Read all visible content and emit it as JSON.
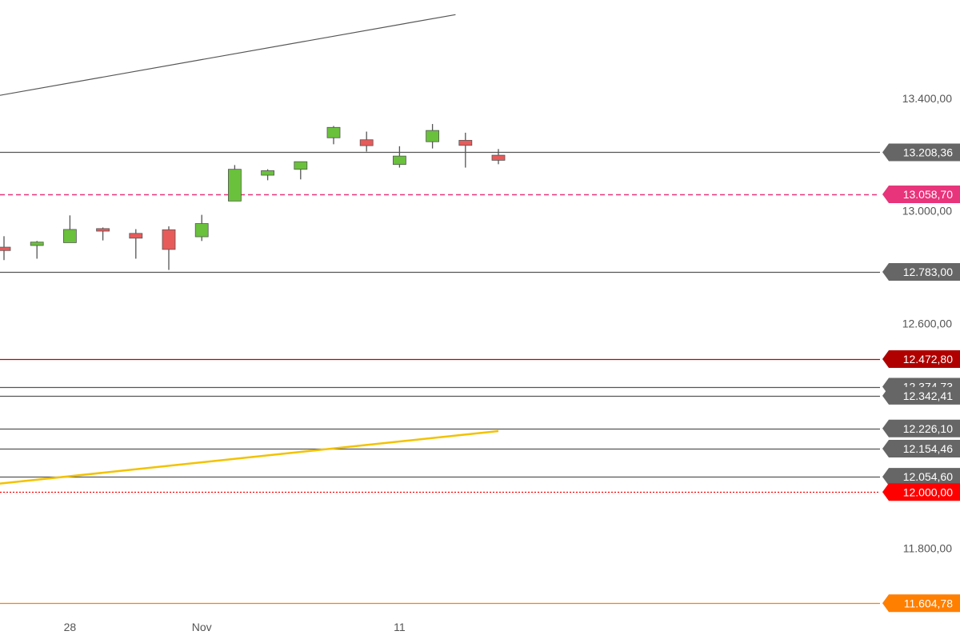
{
  "chart_data": {
    "type": "candlestick",
    "title": "",
    "xlabel": "",
    "ylabel": "",
    "ylim": [
      11560,
      13750
    ],
    "y_ticks": [
      {
        "value": 13400,
        "label": "13.400,00"
      },
      {
        "value": 13000,
        "label": "13.000,00"
      },
      {
        "value": 12600,
        "label": "12.600,00"
      },
      {
        "value": 11800,
        "label": "11.800,00"
      }
    ],
    "x_ticks": [
      {
        "index": 2,
        "label": "28"
      },
      {
        "index": 6,
        "label": "Nov"
      },
      {
        "index": 12,
        "label": "11"
      }
    ],
    "candles": [
      {
        "open": 12871,
        "high": 12910,
        "low": 12825,
        "close": 12859
      },
      {
        "open": 12877,
        "high": 12893,
        "low": 12830,
        "close": 12889
      },
      {
        "open": 12887,
        "high": 12984,
        "low": 12887,
        "close": 12934
      },
      {
        "open": 12937,
        "high": 12941,
        "low": 12895,
        "close": 12928
      },
      {
        "open": 12920,
        "high": 12935,
        "low": 12830,
        "close": 12903
      },
      {
        "open": 12933,
        "high": 12945,
        "low": 12790,
        "close": 12863
      },
      {
        "open": 12908,
        "high": 12986,
        "low": 12893,
        "close": 12955
      },
      {
        "open": 13035,
        "high": 13163,
        "low": 13035,
        "close": 13148
      },
      {
        "open": 13127,
        "high": 13148,
        "low": 13109,
        "close": 13143
      },
      {
        "open": 13148,
        "high": 13175,
        "low": 13112,
        "close": 13175
      },
      {
        "open": 13260,
        "high": 13302,
        "low": 13237,
        "close": 13297
      },
      {
        "open": 13253,
        "high": 13282,
        "low": 13211,
        "close": 13232
      },
      {
        "open": 13165,
        "high": 13230,
        "low": 13154,
        "close": 13195
      },
      {
        "open": 13246,
        "high": 13309,
        "low": 13222,
        "close": 13286
      },
      {
        "open": 13251,
        "high": 13278,
        "low": 13154,
        "close": 13233
      },
      {
        "open": 13198,
        "high": 13220,
        "low": 13166,
        "close": 13180
      }
    ],
    "horizontal_levels": [
      {
        "value": 13208.36,
        "label": "13.208,36",
        "line_color": "#555555",
        "tag_color": "#666666",
        "style": "solid"
      },
      {
        "value": 13058.7,
        "label": "13.058,70",
        "line_color": "#e8347a",
        "tag_color": "#e8347a",
        "style": "dashed"
      },
      {
        "value": 12783.0,
        "label": "12.783,00",
        "line_color": "#555555",
        "tag_color": "#666666",
        "style": "solid"
      },
      {
        "value": 12472.8,
        "label": "12.472,80",
        "line_color": "#c00000",
        "tag_color": "#b00000",
        "style": "solid"
      },
      {
        "value": 12374.73,
        "label": "12.374,73",
        "line_color": "#555555",
        "tag_color": "#666666",
        "style": "solid"
      },
      {
        "value": 12342.41,
        "label": "12.342,41",
        "line_color": "#555555",
        "tag_color": "#666666",
        "style": "solid"
      },
      {
        "value": 12226.1,
        "label": "12.226,10",
        "line_color": "#555555",
        "tag_color": "#666666",
        "style": "solid"
      },
      {
        "value": 12154.46,
        "label": "12.154,46",
        "line_color": "#555555",
        "tag_color": "#666666",
        "style": "solid"
      },
      {
        "value": 12054.6,
        "label": "12.054,60",
        "line_color": "#555555",
        "tag_color": "#666666",
        "style": "solid"
      },
      {
        "value": 12000.0,
        "label": "12.000,00",
        "line_color": "#ff0000",
        "tag_color": "#ff0000",
        "style": "dotted"
      },
      {
        "value": 11604.78,
        "label": "11.604,78",
        "line_color": "#ff7f00",
        "tag_color": "#ff7f00",
        "style": "solid"
      }
    ],
    "trendlines": [
      {
        "from": {
          "index": -2,
          "value": 13372
        },
        "to": {
          "index": 13.7,
          "value": 13698
        },
        "color": "#555555"
      },
      {
        "from": {
          "index": -2,
          "value": 12007
        },
        "to": {
          "index": 15,
          "value": 12217
        },
        "color": "#f2c200"
      }
    ],
    "colors": {
      "up": "#6ac13c",
      "down": "#e85b5b",
      "wick": "#555555"
    },
    "grid": false
  }
}
